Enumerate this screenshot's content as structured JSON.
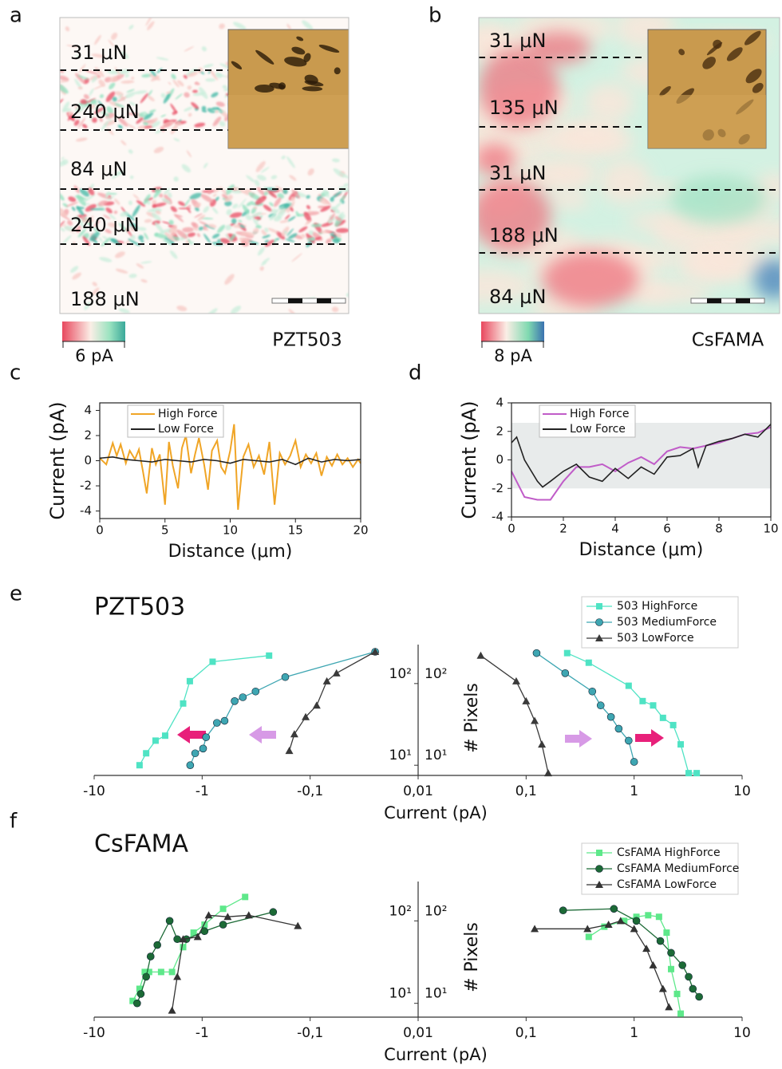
{
  "panels": [
    {
      "label": "a",
      "annotations": [
        "31 μN",
        "240 μN",
        "84 μN",
        "240 μN",
        "188 μN"
      ],
      "colorbar_label": "6 pA",
      "sample": "PZT503"
    },
    {
      "label": "b",
      "annotations": [
        "31 μN",
        "135 μN",
        "31 μN",
        "188 μN",
        "84 μN"
      ],
      "colorbar_label": "8 pA",
      "sample": "CsFAMA"
    }
  ],
  "chart_data": [
    {
      "type": "line",
      "panel_label": "c",
      "xlabel": "Distance (μm)",
      "ylabel": "Current (pA)",
      "xlim": [
        0,
        20
      ],
      "ylim": [
        -4.6,
        4.6
      ],
      "xticks": [
        0,
        5,
        10,
        15,
        20
      ],
      "yticks": [
        -4,
        -2,
        0,
        2,
        4
      ],
      "legend": "upper left",
      "series": [
        {
          "name": "High Force",
          "color": "#f0a526",
          "x": [
            0,
            0.5,
            1,
            1.3,
            1.6,
            2,
            2.3,
            2.7,
            3,
            3.3,
            3.6,
            4,
            4.3,
            4.6,
            5,
            5.3,
            5.6,
            6,
            6.3,
            6.6,
            7,
            7.3,
            7.6,
            8,
            8.3,
            8.6,
            9,
            9.3,
            9.6,
            10,
            10.3,
            10.6,
            11,
            11.4,
            11.8,
            12.2,
            12.6,
            13,
            13.4,
            13.8,
            14.2,
            14.6,
            15,
            15.4,
            15.8,
            16.2,
            16.6,
            17,
            17.4,
            17.8,
            18.2,
            18.6,
            19,
            19.4,
            19.8,
            20
          ],
          "values": [
            0.2,
            -0.3,
            1.4,
            0.4,
            1.3,
            -0.2,
            0.8,
            0.1,
            0.9,
            -0.8,
            -2.6,
            1.0,
            -0.3,
            0.5,
            -3.5,
            1.5,
            -0.4,
            -2.2,
            1.0,
            2.0,
            -1.0,
            0.5,
            1.8,
            -0.3,
            -2.3,
            0.8,
            1.6,
            -0.5,
            -1.0,
            0.8,
            2.9,
            -3.9,
            0.3,
            1.3,
            -0.5,
            0.4,
            -1.1,
            1.5,
            -3.5,
            0.6,
            -0.3,
            0.4,
            1.6,
            -0.5,
            0.5,
            -0.2,
            0.6,
            -1.2,
            0.3,
            -0.4,
            0.5,
            -0.3,
            0.2,
            -0.5,
            0.1,
            -0.2
          ]
        },
        {
          "name": "Low Force",
          "color": "#222222",
          "x": [
            0,
            1,
            2,
            3,
            4,
            5,
            6,
            7,
            8,
            9,
            10,
            11,
            12,
            13,
            14,
            15,
            16,
            17,
            18,
            19,
            20
          ],
          "values": [
            0.2,
            0.3,
            0.1,
            0,
            -0.1,
            0.1,
            0,
            -0.1,
            0.1,
            0,
            -0.2,
            0.1,
            0,
            -0.1,
            0.1,
            -0.3,
            0.2,
            -0.1,
            0.1,
            0,
            0.1
          ]
        }
      ]
    },
    {
      "type": "line",
      "panel_label": "d",
      "xlabel": "Distance (μm)",
      "ylabel": "Current (pA)",
      "xlim": [
        0,
        10
      ],
      "ylim": [
        -4,
        4
      ],
      "xticks": [
        0,
        2,
        4,
        6,
        8,
        10
      ],
      "yticks": [
        -4,
        -2,
        0,
        2,
        4
      ],
      "legend": "upper left",
      "shade": [
        -2,
        2.6
      ],
      "series": [
        {
          "name": "High Force",
          "color": "#c05cc8",
          "x": [
            0,
            0.5,
            1,
            1.5,
            2,
            2.5,
            3,
            3.5,
            4,
            4.5,
            5,
            5.5,
            6,
            6.5,
            7,
            7.5,
            8,
            8.5,
            9,
            9.5,
            10
          ],
          "values": [
            -0.8,
            -2.6,
            -2.8,
            -2.8,
            -1.5,
            -0.5,
            -0.5,
            -0.3,
            -0.8,
            -0.2,
            0.2,
            -0.3,
            0.6,
            0.9,
            0.8,
            1.0,
            1.2,
            1.5,
            1.8,
            1.9,
            2.3
          ]
        },
        {
          "name": "Low Force",
          "color": "#222222",
          "x": [
            0,
            0.2,
            0.5,
            1,
            1.2,
            1.5,
            2,
            2.5,
            3,
            3.5,
            4,
            4.5,
            5,
            5.5,
            6,
            6.5,
            7,
            7.2,
            7.5,
            8,
            8.5,
            9,
            9.5,
            10
          ],
          "values": [
            1.2,
            1.6,
            0,
            -1.5,
            -1.9,
            -1.5,
            -0.8,
            -0.3,
            -1.2,
            -1.5,
            -0.6,
            -1.3,
            -0.5,
            -1.0,
            0.2,
            0.3,
            0.8,
            -0.5,
            1.0,
            1.3,
            1.5,
            1.8,
            1.6,
            2.5
          ]
        }
      ]
    },
    {
      "type": "mirror-log",
      "panel_label": "e",
      "title": "PZT503",
      "xlabel": "Current (pA)",
      "ylabel": "# Pixels",
      "xscale": "signed-log",
      "xlinthresh": 0.01,
      "yscale": "log",
      "legend": "upper right",
      "xlim": [
        -10,
        10
      ],
      "ylim": [
        7.5,
        300
      ],
      "xticks": [
        -10,
        -1,
        {
          "value": -0.1,
          "label": "-0,1"
        },
        {
          "value": 0.01,
          "label": "0,01"
        },
        {
          "value": 0.1,
          "label": "0,1"
        },
        1,
        10
      ],
      "yticks": [
        {
          "value": 10,
          "label": "10¹"
        },
        {
          "value": 100,
          "label": "10²"
        }
      ],
      "series": [
        {
          "name": "503 HighForce",
          "color": "#4fe3c4",
          "marker": "square",
          "x": [
            -3.8,
            -3.3,
            -2.7,
            -2.2,
            -1.5,
            -1.3,
            -0.8,
            -0.24,
            null,
            0.24,
            0.38,
            0.89,
            1.2,
            1.5,
            1.85,
            2.3,
            2.7,
            3.2,
            3.8
          ],
          "values": [
            10,
            14,
            20,
            23,
            57,
            107,
            185,
            220,
            null,
            236,
            180,
            94,
            61,
            54,
            38,
            31,
            18,
            8,
            8
          ]
        },
        {
          "name": "503 MediumForce",
          "color": "#3ea6b2",
          "marker": "circle",
          "x": [
            -1.29,
            -1.16,
            -0.98,
            -0.92,
            -0.73,
            -0.62,
            -0.5,
            -0.42,
            -0.32,
            -0.17,
            -0.025,
            null,
            0.125,
            0.23,
            0.41,
            0.49,
            0.61,
            0.72,
            0.89,
            1.0
          ],
          "values": [
            10,
            14,
            16,
            22,
            33,
            35,
            61,
            68,
            80,
            120,
            245,
            null,
            236,
            134,
            80,
            54,
            39,
            28,
            20,
            11
          ]
        },
        {
          "name": "503 LowForce",
          "color": "#3a3a3a",
          "marker": "triangle",
          "x": [
            -0.156,
            -0.14,
            -0.11,
            -0.087,
            -0.07,
            -0.057,
            -0.025,
            null,
            0.038,
            0.081,
            0.1,
            0.12,
            0.14,
            0.16
          ],
          "values": [
            15,
            24,
            39,
            54,
            107,
            134,
            245,
            null,
            220,
            107,
            61,
            35,
            18,
            8
          ]
        }
      ]
    },
    {
      "type": "mirror-log",
      "panel_label": "f",
      "title": "CsFAMA",
      "xlabel": "Current (pA)",
      "ylabel": "# Pixels",
      "xscale": "signed-log",
      "xlinthresh": 0.01,
      "yscale": "log",
      "legend": "upper right",
      "xlim": [
        -10,
        10
      ],
      "ylim": [
        6.8,
        300
      ],
      "xticks": [
        -10,
        -1,
        {
          "value": -0.1,
          "label": "-0,1"
        },
        {
          "value": 0.01,
          "label": "0,01"
        },
        {
          "value": 0.1,
          "label": "0,1"
        },
        1,
        10
      ],
      "yticks": [
        {
          "value": 10,
          "label": "10¹"
        },
        {
          "value": 100,
          "label": "10²"
        }
      ],
      "series": [
        {
          "name": "CsFAMA HighForce",
          "color": "#5ee88a",
          "marker": "square",
          "x": [
            -4.4,
            -3.8,
            -3.4,
            -3.1,
            -2.4,
            -1.9,
            -1.5,
            -1.2,
            -0.95,
            -0.64,
            -0.4,
            null,
            0.38,
            0.53,
            0.81,
            1.05,
            1.35,
            1.7,
            2.0,
            2.2,
            2.5,
            2.7
          ],
          "values": [
            10.7,
            15,
            24,
            24,
            24,
            24,
            48,
            72,
            90,
            140,
            195,
            null,
            64,
            85,
            100,
            112,
            117,
            112,
            72,
            26,
            13,
            7.5
          ]
        },
        {
          "name": "CsFAMA MediumForce",
          "color": "#1c6a36",
          "marker": "circle",
          "x": [
            -4.0,
            -3.7,
            -3.3,
            -3.0,
            -2.6,
            -2.0,
            -1.7,
            -1.4,
            -0.95,
            -0.64,
            -0.22,
            null,
            0.22,
            0.65,
            1.05,
            1.75,
            2.2,
            2.8,
            3.2,
            3.5,
            4.0
          ],
          "values": [
            10,
            13,
            21,
            37,
            51,
            100,
            60,
            60,
            75,
            90,
            128,
            null,
            134,
            140,
            100,
            57,
            41,
            29,
            21,
            15,
            12
          ]
        },
        {
          "name": "CsFAMA LowForce",
          "color": "#333333",
          "marker": "triangle",
          "x": [
            -1.9,
            -1.7,
            -1.5,
            -1.1,
            -0.87,
            -0.58,
            -0.37,
            -0.13,
            null,
            0.12,
            0.37,
            0.58,
            0.75,
            1.0,
            1.3,
            1.5,
            1.85,
            2.1
          ],
          "values": [
            8.2,
            21,
            60,
            64,
            117,
            112,
            117,
            87,
            null,
            80,
            80,
            90,
            100,
            80,
            46,
            29,
            15,
            9
          ]
        }
      ]
    }
  ]
}
